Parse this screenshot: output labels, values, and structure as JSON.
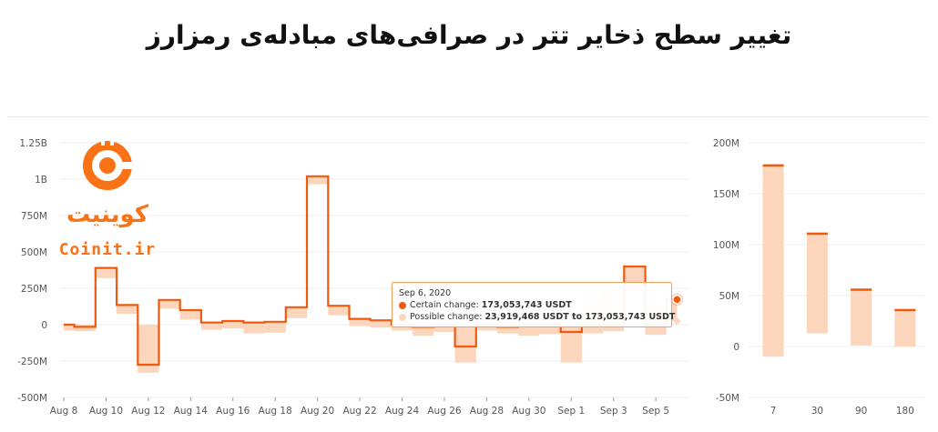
{
  "title": "تغییر سطح ذخایر تتر در صرافی‌های مبادله‌ی رمزارز",
  "logo": {
    "name": "کوینیت",
    "domain": "Coinit.ir"
  },
  "colors": {
    "accent": "#f15a0e",
    "band": "#fbd6bd",
    "grid": "#ececec"
  },
  "tooltip": {
    "date": "Sep 6, 2020",
    "certain_label": "Certain change:",
    "certain_value": "173,053,743 USDT",
    "possible_label": "Possible change:",
    "possible_value": "23,919,468 USDT to 173,053,743 USDT"
  },
  "chart_data": [
    {
      "type": "line",
      "step": true,
      "x_ticks": [
        "Aug 8",
        "Aug 10",
        "Aug 12",
        "Aug 14",
        "Aug 16",
        "Aug 18",
        "Aug 20",
        "Aug 22",
        "Aug 24",
        "Aug 26",
        "Aug 28",
        "Aug 30",
        "Sep 1",
        "Sep 3",
        "Sep 5"
      ],
      "y_ticks": [
        "1.25B",
        "1B",
        "750M",
        "500M",
        "250M",
        "0",
        "-250M",
        "-500M"
      ],
      "ylim": [
        -500000000,
        1250000000
      ],
      "grid": true,
      "series": [
        {
          "x": [
            "2020-08-08",
            "2020-08-09",
            "2020-08-10",
            "2020-08-11",
            "2020-08-12",
            "2020-08-13",
            "2020-08-14",
            "2020-08-15",
            "2020-08-16",
            "2020-08-17",
            "2020-08-18",
            "2020-08-19",
            "2020-08-20",
            "2020-08-21",
            "2020-08-22",
            "2020-08-23",
            "2020-08-24",
            "2020-08-25",
            "2020-08-26",
            "2020-08-27",
            "2020-08-28",
            "2020-08-29",
            "2020-08-30",
            "2020-08-31",
            "2020-09-01",
            "2020-09-02",
            "2020-09-03",
            "2020-09-04",
            "2020-09-05",
            "2020-09-06"
          ],
          "certain": [
            0,
            -15000000,
            390000000,
            135000000,
            -275000000,
            170000000,
            100000000,
            15000000,
            25000000,
            15000000,
            20000000,
            120000000,
            1020000000,
            130000000,
            40000000,
            30000000,
            0,
            -15000000,
            0,
            -150000000,
            0,
            -15000000,
            0,
            0,
            -50000000,
            0,
            0,
            400000000,
            0,
            173053743
          ],
          "possible_low": [
            -40000000,
            -45000000,
            320000000,
            75000000,
            -330000000,
            110000000,
            35000000,
            -35000000,
            -25000000,
            -60000000,
            -55000000,
            45000000,
            965000000,
            65000000,
            -10000000,
            -20000000,
            -40000000,
            -75000000,
            -50000000,
            -260000000,
            -40000000,
            -60000000,
            -75000000,
            -65000000,
            -260000000,
            -60000000,
            -45000000,
            230000000,
            -70000000,
            23919468
          ],
          "possible_high": [
            0,
            0,
            390000000,
            135000000,
            0,
            170000000,
            100000000,
            15000000,
            25000000,
            15000000,
            20000000,
            120000000,
            1020000000,
            130000000,
            40000000,
            30000000,
            0,
            0,
            0,
            0,
            0,
            0,
            0,
            0,
            0,
            190000000,
            230000000,
            400000000,
            130000000,
            173053743
          ]
        }
      ]
    },
    {
      "type": "bar",
      "categories": [
        "7",
        "30",
        "90",
        "180"
      ],
      "y_ticks": [
        "200M",
        "150M",
        "100M",
        "50M",
        "0",
        "-50M"
      ],
      "ylim": [
        -50000000,
        200000000
      ],
      "grid": true,
      "certain": [
        178000000,
        111000000,
        56000000,
        36000000
      ],
      "possible_low": [
        -10000000,
        13000000,
        1000000,
        0
      ],
      "possible_high": [
        178000000,
        111000000,
        56000000,
        36000000
      ]
    }
  ]
}
